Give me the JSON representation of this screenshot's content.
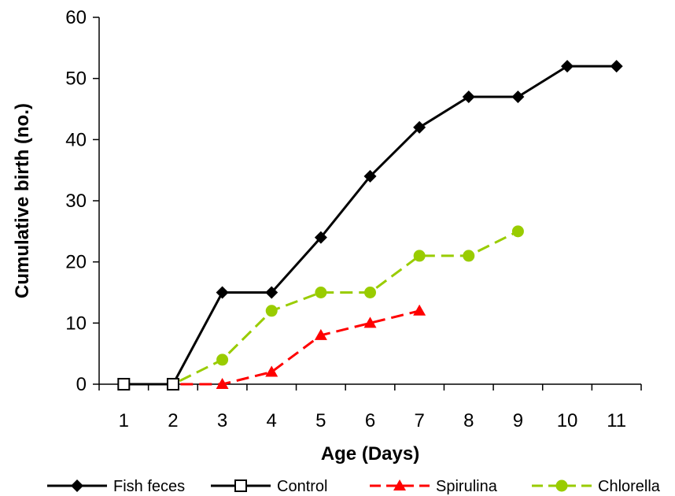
{
  "chart_data": {
    "type": "line",
    "xlabel": "Age (Days)",
    "ylabel": "Cumulative birth (no.)",
    "categories": [
      "1",
      "2",
      "3",
      "4",
      "5",
      "6",
      "7",
      "8",
      "9",
      "10",
      "11"
    ],
    "ylim": [
      0,
      60
    ],
    "yticks": [
      0,
      10,
      20,
      30,
      40,
      50,
      60
    ],
    "grid": false,
    "legend_position": "bottom",
    "series": [
      {
        "name": "Fish feces",
        "x": [
          1,
          2,
          3,
          4,
          5,
          6,
          7,
          8,
          9,
          10,
          11
        ],
        "values": [
          0,
          0,
          15,
          15,
          24,
          34,
          42,
          47,
          47,
          52,
          52
        ],
        "color": "#000000",
        "marker": "diamond",
        "line": "solid"
      },
      {
        "name": "Control",
        "x": [
          1,
          2
        ],
        "values": [
          0,
          0
        ],
        "color": "#000000",
        "marker": "square-open",
        "line": "solid"
      },
      {
        "name": "Spirulina",
        "x": [
          1,
          2,
          3,
          4,
          5,
          6,
          7
        ],
        "values": [
          0,
          0,
          0,
          2,
          8,
          10,
          12
        ],
        "color": "#ff0000",
        "marker": "triangle",
        "line": "dashed"
      },
      {
        "name": "Chlorella",
        "x": [
          1,
          2,
          3,
          4,
          5,
          6,
          7,
          8,
          9
        ],
        "values": [
          0,
          0,
          4,
          12,
          15,
          15,
          21,
          21,
          25
        ],
        "color": "#99cc00",
        "marker": "circle",
        "line": "dashed"
      }
    ]
  }
}
